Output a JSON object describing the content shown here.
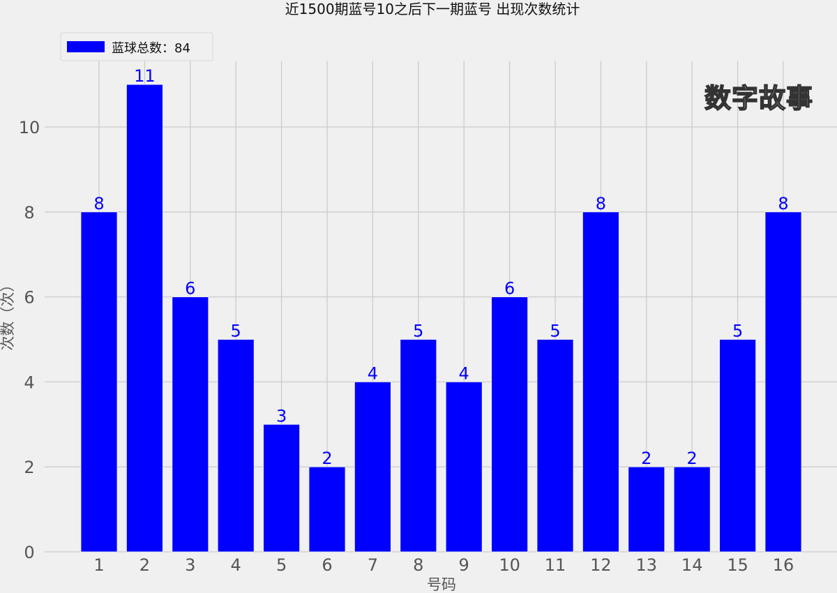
{
  "chart_data": {
    "type": "bar",
    "title": "近1500期蓝号10之后下一期蓝号 出现次数统计",
    "xlabel": "号码",
    "ylabel": "次数（次）",
    "categories": [
      "1",
      "2",
      "3",
      "4",
      "5",
      "6",
      "7",
      "8",
      "9",
      "10",
      "11",
      "12",
      "13",
      "14",
      "15",
      "16"
    ],
    "series": [
      {
        "name": "蓝球总数：84",
        "values": [
          8,
          11,
          6,
          5,
          3,
          2,
          4,
          5,
          4,
          6,
          5,
          8,
          2,
          2,
          5,
          8
        ],
        "color": "#0000ff"
      }
    ],
    "yticks": [
      0,
      2,
      4,
      6,
      8,
      10
    ],
    "ylim": [
      0,
      11.55
    ],
    "xlim": [
      -0.19,
      17.2
    ],
    "grid": true,
    "legend": "top-left",
    "data_label_color": "#0000ff",
    "background": "#f0f0f0"
  },
  "watermark": "数字故事"
}
